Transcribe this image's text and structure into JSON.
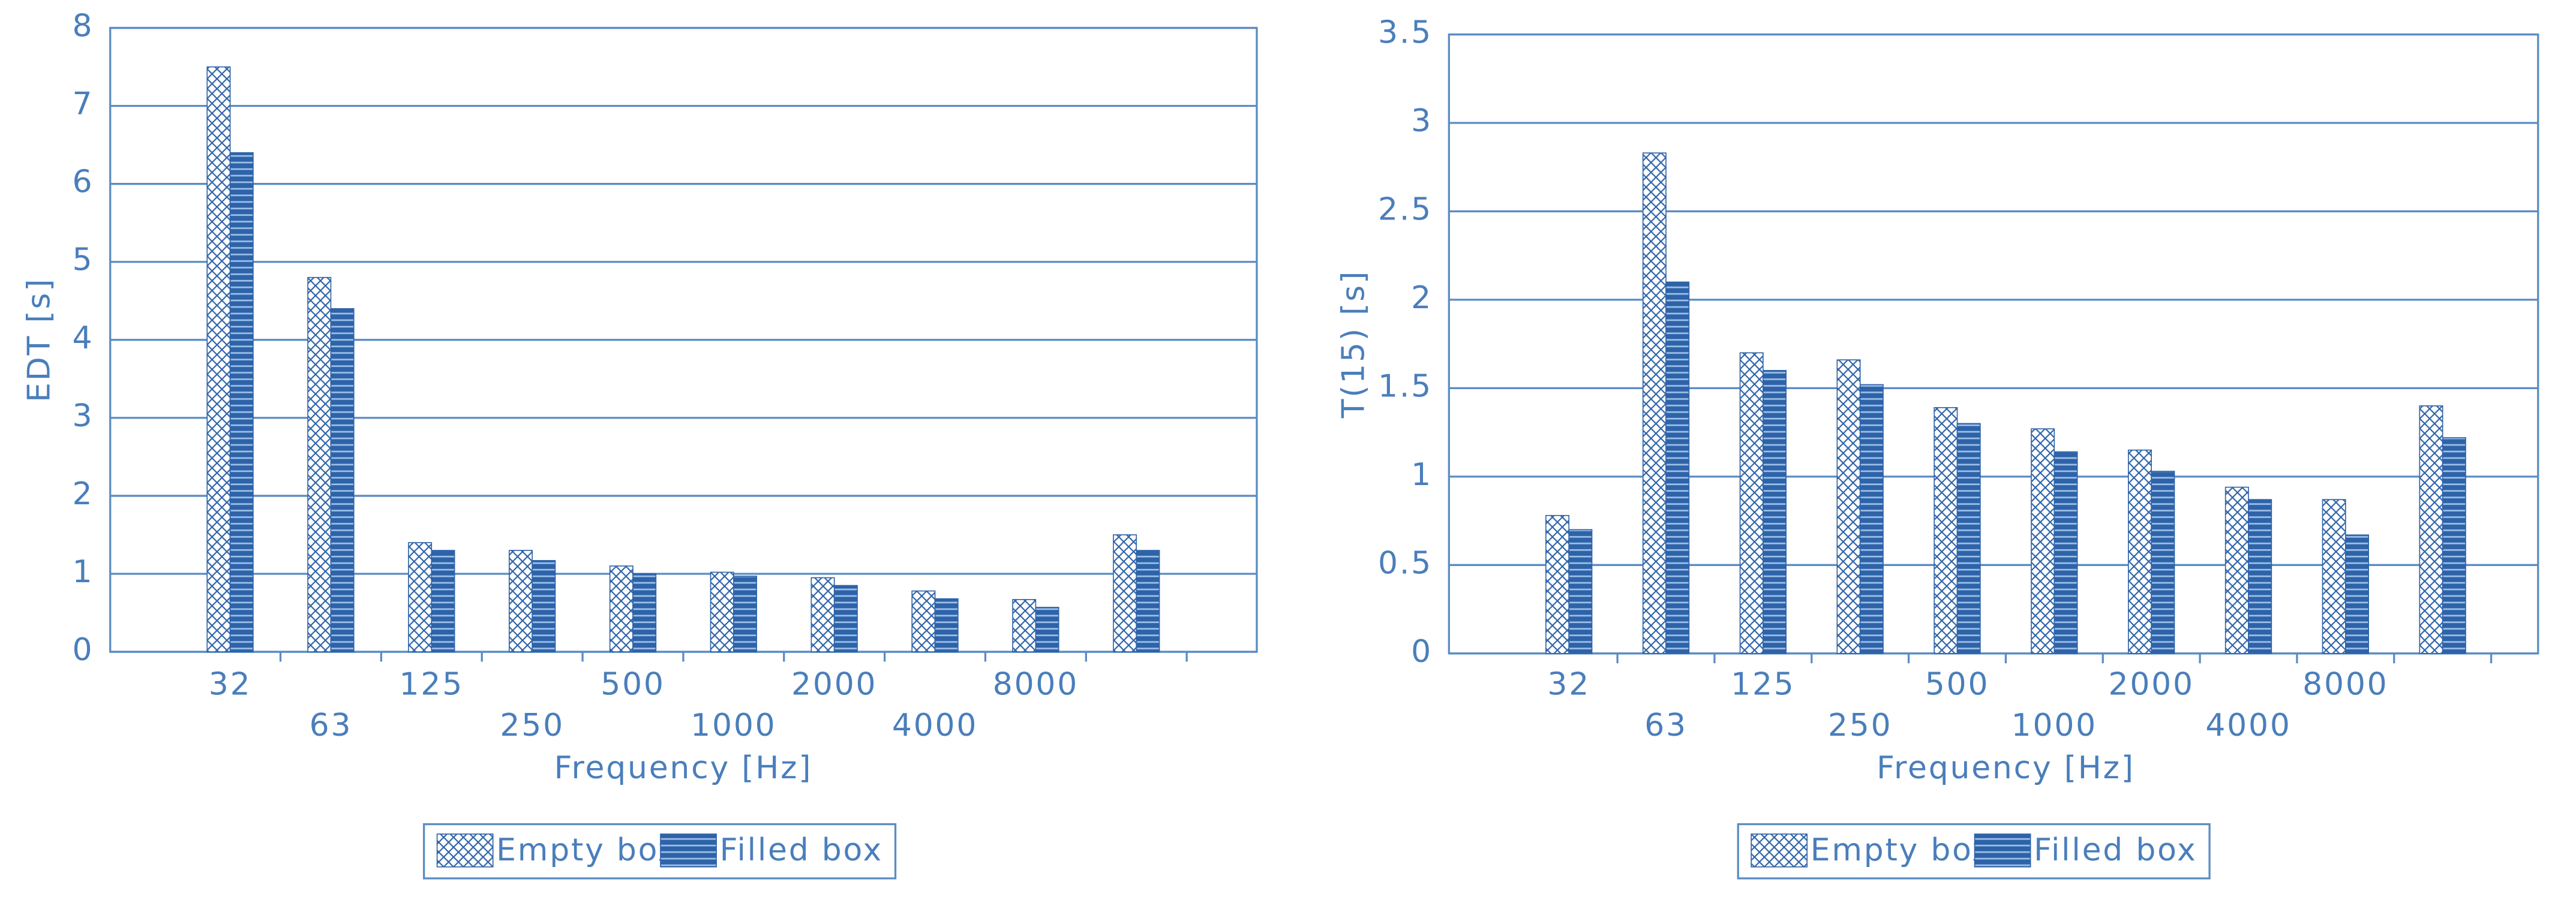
{
  "chart_data": [
    {
      "type": "bar",
      "ylabel": "EDT [s]",
      "xlabel": "Frequency [Hz]",
      "categories": [
        "32",
        "63",
        "125",
        "250",
        "500",
        "1000",
        "2000",
        "4000",
        "8000",
        null
      ],
      "series": [
        {
          "name": "Empty box",
          "color": "#2e63a8",
          "pattern": "crosshatch",
          "values": [
            7.5,
            4.8,
            1.4,
            1.3,
            1.1,
            1.02,
            0.95,
            0.78,
            0.67,
            1.5
          ]
        },
        {
          "name": "Filled box",
          "color": "#2e63a8",
          "pattern": "stripes",
          "values": [
            6.4,
            4.4,
            1.3,
            1.17,
            1.0,
            0.97,
            0.85,
            0.68,
            0.57,
            1.3
          ]
        }
      ],
      "ylim": [
        0,
        8
      ],
      "yticks": [
        0,
        1,
        2,
        3,
        4,
        5,
        6,
        7,
        8
      ],
      "grid": true,
      "legend": "bottom"
    },
    {
      "type": "bar",
      "ylabel": "T(15) [s]",
      "xlabel": "Frequency [Hz]",
      "categories": [
        "32",
        "63",
        "125",
        "250",
        "500",
        "1000",
        "2000",
        "4000",
        "8000",
        null
      ],
      "series": [
        {
          "name": "Empty box",
          "color": "#2e63a8",
          "pattern": "crosshatch",
          "values": [
            0.78,
            2.83,
            1.7,
            1.66,
            1.39,
            1.27,
            1.15,
            0.94,
            0.87,
            1.4
          ]
        },
        {
          "name": "Filled box",
          "color": "#2e63a8",
          "pattern": "stripes",
          "values": [
            0.7,
            2.1,
            1.6,
            1.52,
            1.3,
            1.14,
            1.03,
            0.87,
            0.67,
            1.22
          ]
        }
      ],
      "ylim": [
        0,
        3.5
      ],
      "yticks": [
        0,
        0.5,
        1,
        1.5,
        2,
        2.5,
        3,
        3.5
      ],
      "grid": true,
      "legend": "bottom"
    }
  ]
}
